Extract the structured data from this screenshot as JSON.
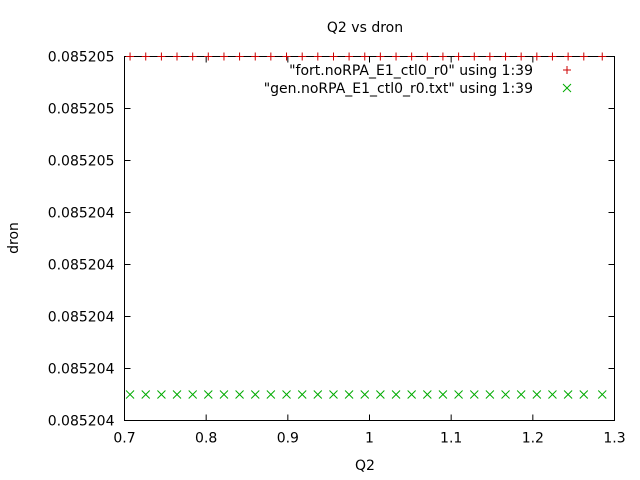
{
  "chart_data": {
    "type": "scatter",
    "title": "Q2 vs dron",
    "xlabel": "Q2",
    "ylabel": "dron",
    "xlim": [
      0.7,
      1.3
    ],
    "ylim": [
      0,
      7
    ],
    "x_ticks": [
      0.7,
      0.8,
      0.9,
      1,
      1.1,
      1.2,
      1.3
    ],
    "x_tick_labels": [
      "0.7",
      "0.8",
      "0.9",
      "1",
      "1.1",
      "1.2",
      "1.3"
    ],
    "y_ticks": [
      0,
      1,
      2,
      3,
      4,
      5,
      6,
      7
    ],
    "y_tick_labels": [
      "0.085204",
      "0.085204",
      "0.085204",
      "0.085204",
      "0.085204",
      "0.085205",
      "0.085205",
      "0.085205"
    ],
    "grid": false,
    "legend_position": "top-right",
    "series": [
      {
        "name": "\"fort.noRPA_E1_ctl0_r0\" using 1:39",
        "marker": "+",
        "color": "#cc0000",
        "x": [
          0.7068,
          0.726,
          0.7452,
          0.7643,
          0.7835,
          0.8026,
          0.8218,
          0.8409,
          0.8601,
          0.8792,
          0.8984,
          0.9176,
          0.9367,
          0.9559,
          0.975,
          0.9942,
          1.0133,
          1.0325,
          1.0516,
          1.0708,
          1.0899,
          1.1091,
          1.1283,
          1.1474,
          1.1666,
          1.1857,
          1.2049,
          1.224,
          1.2432,
          1.2624,
          1.285
        ],
        "y": [
          7,
          7,
          7,
          7,
          7,
          7,
          7,
          7,
          7,
          7,
          7,
          7,
          7,
          7,
          7,
          7,
          7,
          7,
          7,
          7,
          7,
          7,
          7,
          7,
          7,
          7,
          7,
          7,
          7,
          7,
          7
        ]
      },
      {
        "name": "\"gen.noRPA_E1_ctl0_r0.txt\" using 1:39",
        "marker": "x",
        "color": "#00aa00",
        "x": [
          0.7068,
          0.726,
          0.7452,
          0.7643,
          0.7835,
          0.8026,
          0.8218,
          0.8409,
          0.8601,
          0.8792,
          0.8984,
          0.9176,
          0.9367,
          0.9559,
          0.975,
          0.9942,
          1.0133,
          1.0325,
          1.0516,
          1.0708,
          1.0899,
          1.1091,
          1.1283,
          1.1474,
          1.1666,
          1.1857,
          1.2049,
          1.224,
          1.2432,
          1.2624,
          1.285
        ],
        "y": [
          0.5,
          0.5,
          0.5,
          0.5,
          0.5,
          0.5,
          0.5,
          0.5,
          0.5,
          0.5,
          0.5,
          0.5,
          0.5,
          0.5,
          0.5,
          0.5,
          0.5,
          0.5,
          0.5,
          0.5,
          0.5,
          0.5,
          0.5,
          0.5,
          0.5,
          0.5,
          0.5,
          0.5,
          0.5,
          0.5,
          0.5
        ]
      }
    ]
  }
}
